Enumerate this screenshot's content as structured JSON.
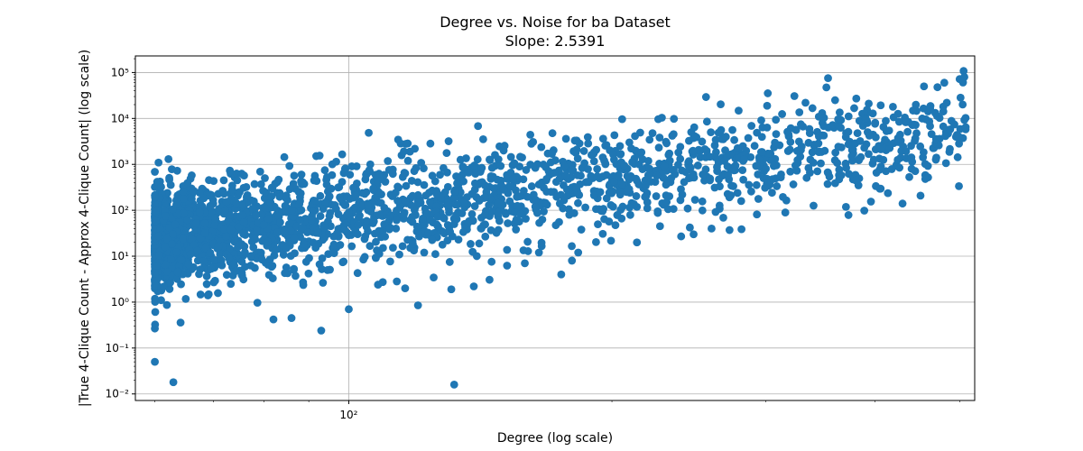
{
  "chart_data": {
    "type": "scatter",
    "title": "Degree vs. Noise for ba Dataset",
    "subtitle": "Slope: 2.5391",
    "xlabel": "Degree (log scale)",
    "ylabel": "|True 4-Clique Count - Approx 4-Clique Count| (log scale)",
    "x_scale": "log",
    "y_scale": "log",
    "xlim": [
      57,
      520
    ],
    "ylim": [
      0.0072,
      230000
    ],
    "grid": true,
    "marker_color": "#1f77b4",
    "x_tick_values": [
      100
    ],
    "x_tick_labels": [
      "10²"
    ],
    "y_tick_values": [
      0.01,
      0.1,
      1,
      10,
      100,
      1000,
      10000,
      100000
    ],
    "y_tick_labels": [
      "10⁻²",
      "10⁻¹",
      "10⁰",
      "10¹",
      "10²",
      "10³",
      "10⁴",
      "10⁵"
    ],
    "trend": {
      "slope": 2.5391,
      "anchor_x": 100,
      "anchor_y": 80,
      "spread_decades": 0.55,
      "min_x": 60
    },
    "outliers": [
      [
        60,
        0.05
      ],
      [
        63,
        0.018
      ],
      [
        132,
        0.016
      ],
      [
        93,
        0.24
      ],
      [
        82,
        0.42
      ],
      [
        86,
        0.45
      ],
      [
        100,
        0.7
      ],
      [
        120,
        0.85
      ],
      [
        61,
        1.1
      ],
      [
        69,
        1.4
      ],
      [
        108,
        2.4
      ],
      [
        116,
        2.0
      ],
      [
        131,
        1.9
      ],
      [
        139,
        2.2
      ],
      [
        175,
        4.0
      ],
      [
        180,
        8.0
      ],
      [
        183,
        12.0
      ],
      [
        159,
        7.0
      ],
      [
        165,
        12.0
      ],
      [
        227,
        45.0
      ],
      [
        248,
        30.0
      ],
      [
        260,
        40.0
      ],
      [
        240,
        27.0
      ],
      [
        430,
        140.0
      ],
      [
        300,
        800.0
      ],
      [
        380,
        450.0
      ],
      [
        470,
        1400.0
      ],
      [
        505,
        108000.0
      ],
      [
        480,
        60000.0
      ],
      [
        506,
        80000.0
      ],
      [
        455,
        50000.0
      ],
      [
        360,
        25000.0
      ],
      [
        333,
        22000.0
      ],
      [
        270,
        4000.0
      ],
      [
        196,
        1200.0
      ]
    ]
  }
}
